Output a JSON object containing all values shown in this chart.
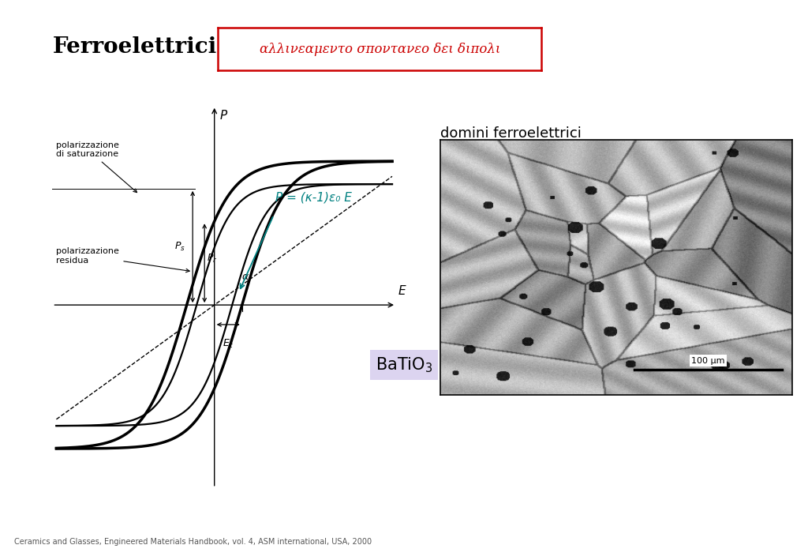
{
  "title_left": "Ferroelettrici",
  "title_right_text": "αλλινεαμεντο σποντανεο δει διπολι",
  "label_pol_sat": "polarizzazione\ndi saturazione",
  "label_pol_res": "polarizzazione\nresidua",
  "formula": "P = (κ-1)ε₀ E",
  "batio3_label": "BaTiO$_3$",
  "domains_label": "domini ferroelettrici",
  "scale_label": "100 μm",
  "footer": "Ceramics and Glasses, Engineered Materials Handbook, vol. 4, ASM international, USA, 2000",
  "bg_color": "#ffffff",
  "curve_color": "#000000",
  "formula_color": "#008080",
  "title_right_color": "#cc0000",
  "batio3_bg": "#dcd4f0",
  "arrow_color": "#008080"
}
